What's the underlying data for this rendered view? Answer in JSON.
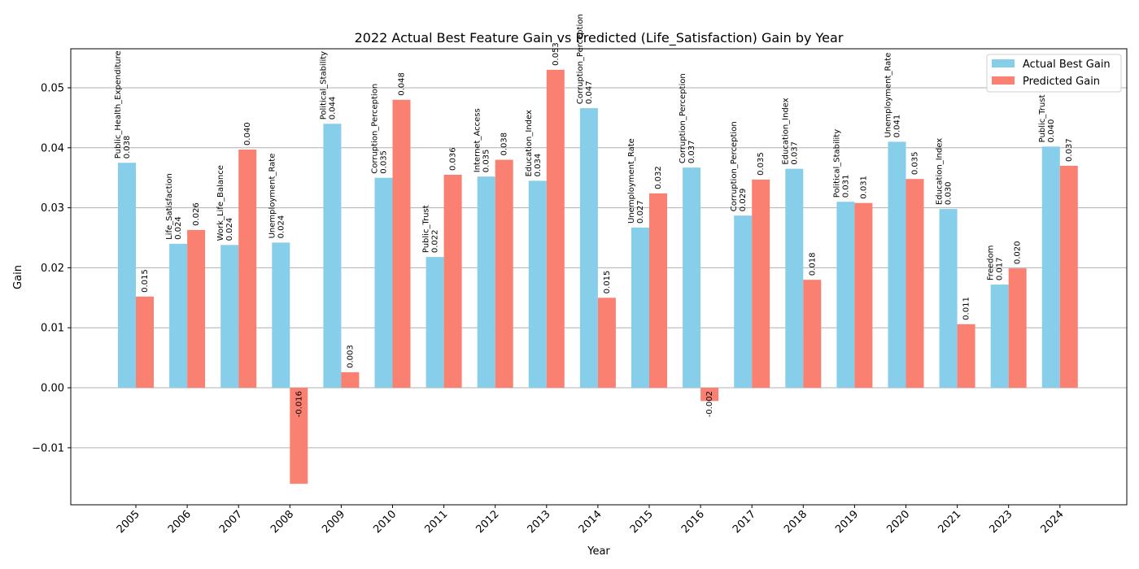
{
  "chart_data": {
    "type": "bar",
    "title": "2022 Actual Best Feature Gain vs Predicted (Life_Satisfaction) Gain by Year",
    "xlabel": "Year",
    "ylabel": "Gain",
    "ylim": [
      -0.0195,
      0.0565
    ],
    "yticks": [
      -0.01,
      0.0,
      0.01,
      0.02,
      0.03,
      0.04,
      0.05
    ],
    "ytick_labels": [
      "−0.01",
      "0.00",
      "0.01",
      "0.02",
      "0.03",
      "0.04",
      "0.05"
    ],
    "grid": "y",
    "legend_position": "top-right",
    "categories": [
      "2005",
      "2006",
      "2007",
      "2008",
      "2009",
      "2010",
      "2011",
      "2012",
      "2013",
      "2014",
      "2015",
      "2016",
      "2017",
      "2018",
      "2019",
      "2020",
      "2021",
      "2023",
      "2024"
    ],
    "series": [
      {
        "name": "Actual Best Gain",
        "color": "#87ceeb",
        "values": [
          0.0375,
          0.024,
          0.0238,
          0.0242,
          0.044,
          0.035,
          0.0218,
          0.0352,
          0.0345,
          0.0466,
          0.0267,
          0.0367,
          0.0287,
          0.0365,
          0.031,
          0.041,
          0.0298,
          0.0172,
          0.0402
        ],
        "value_labels": [
          "0.038",
          "0.024",
          "0.024",
          "0.024",
          "0.044",
          "0.035",
          "0.022",
          "0.035",
          "0.034",
          "0.047",
          "0.027",
          "0.037",
          "0.029",
          "0.037",
          "0.031",
          "0.041",
          "0.030",
          "0.017",
          "0.040"
        ],
        "features": [
          "Public_Health_Expenditure",
          "Life_Satisfaction",
          "Work_Life_Balance",
          "Unemployment_Rate",
          "Political_Stability",
          "Corruption_Perception",
          "Public_Trust",
          "Internet_Access",
          "Education_Index",
          "Corruption_Perception",
          "Unemployment_Rate",
          "Corruption_Perception",
          "Corruption_Perception",
          "Education_Index",
          "Political_Stability",
          "Unemployment_Rate",
          "Education_Index",
          "Freedom",
          "Public_Trust"
        ]
      },
      {
        "name": "Predicted Gain",
        "color": "#fa8072",
        "values": [
          0.0152,
          0.0263,
          0.0397,
          -0.016,
          0.0026,
          0.048,
          0.0355,
          0.038,
          0.053,
          0.015,
          0.0324,
          -0.0022,
          0.0347,
          0.018,
          0.0308,
          0.0348,
          0.0106,
          0.0199,
          0.037
        ],
        "value_labels": [
          "0.015",
          "0.026",
          "0.040",
          "-0.016",
          "0.003",
          "0.048",
          "0.036",
          "0.038",
          "0.053",
          "0.015",
          "0.032",
          "-0.002",
          "0.035",
          "0.018",
          "0.031",
          "0.035",
          "0.011",
          "0.020",
          "0.037"
        ]
      }
    ]
  }
}
